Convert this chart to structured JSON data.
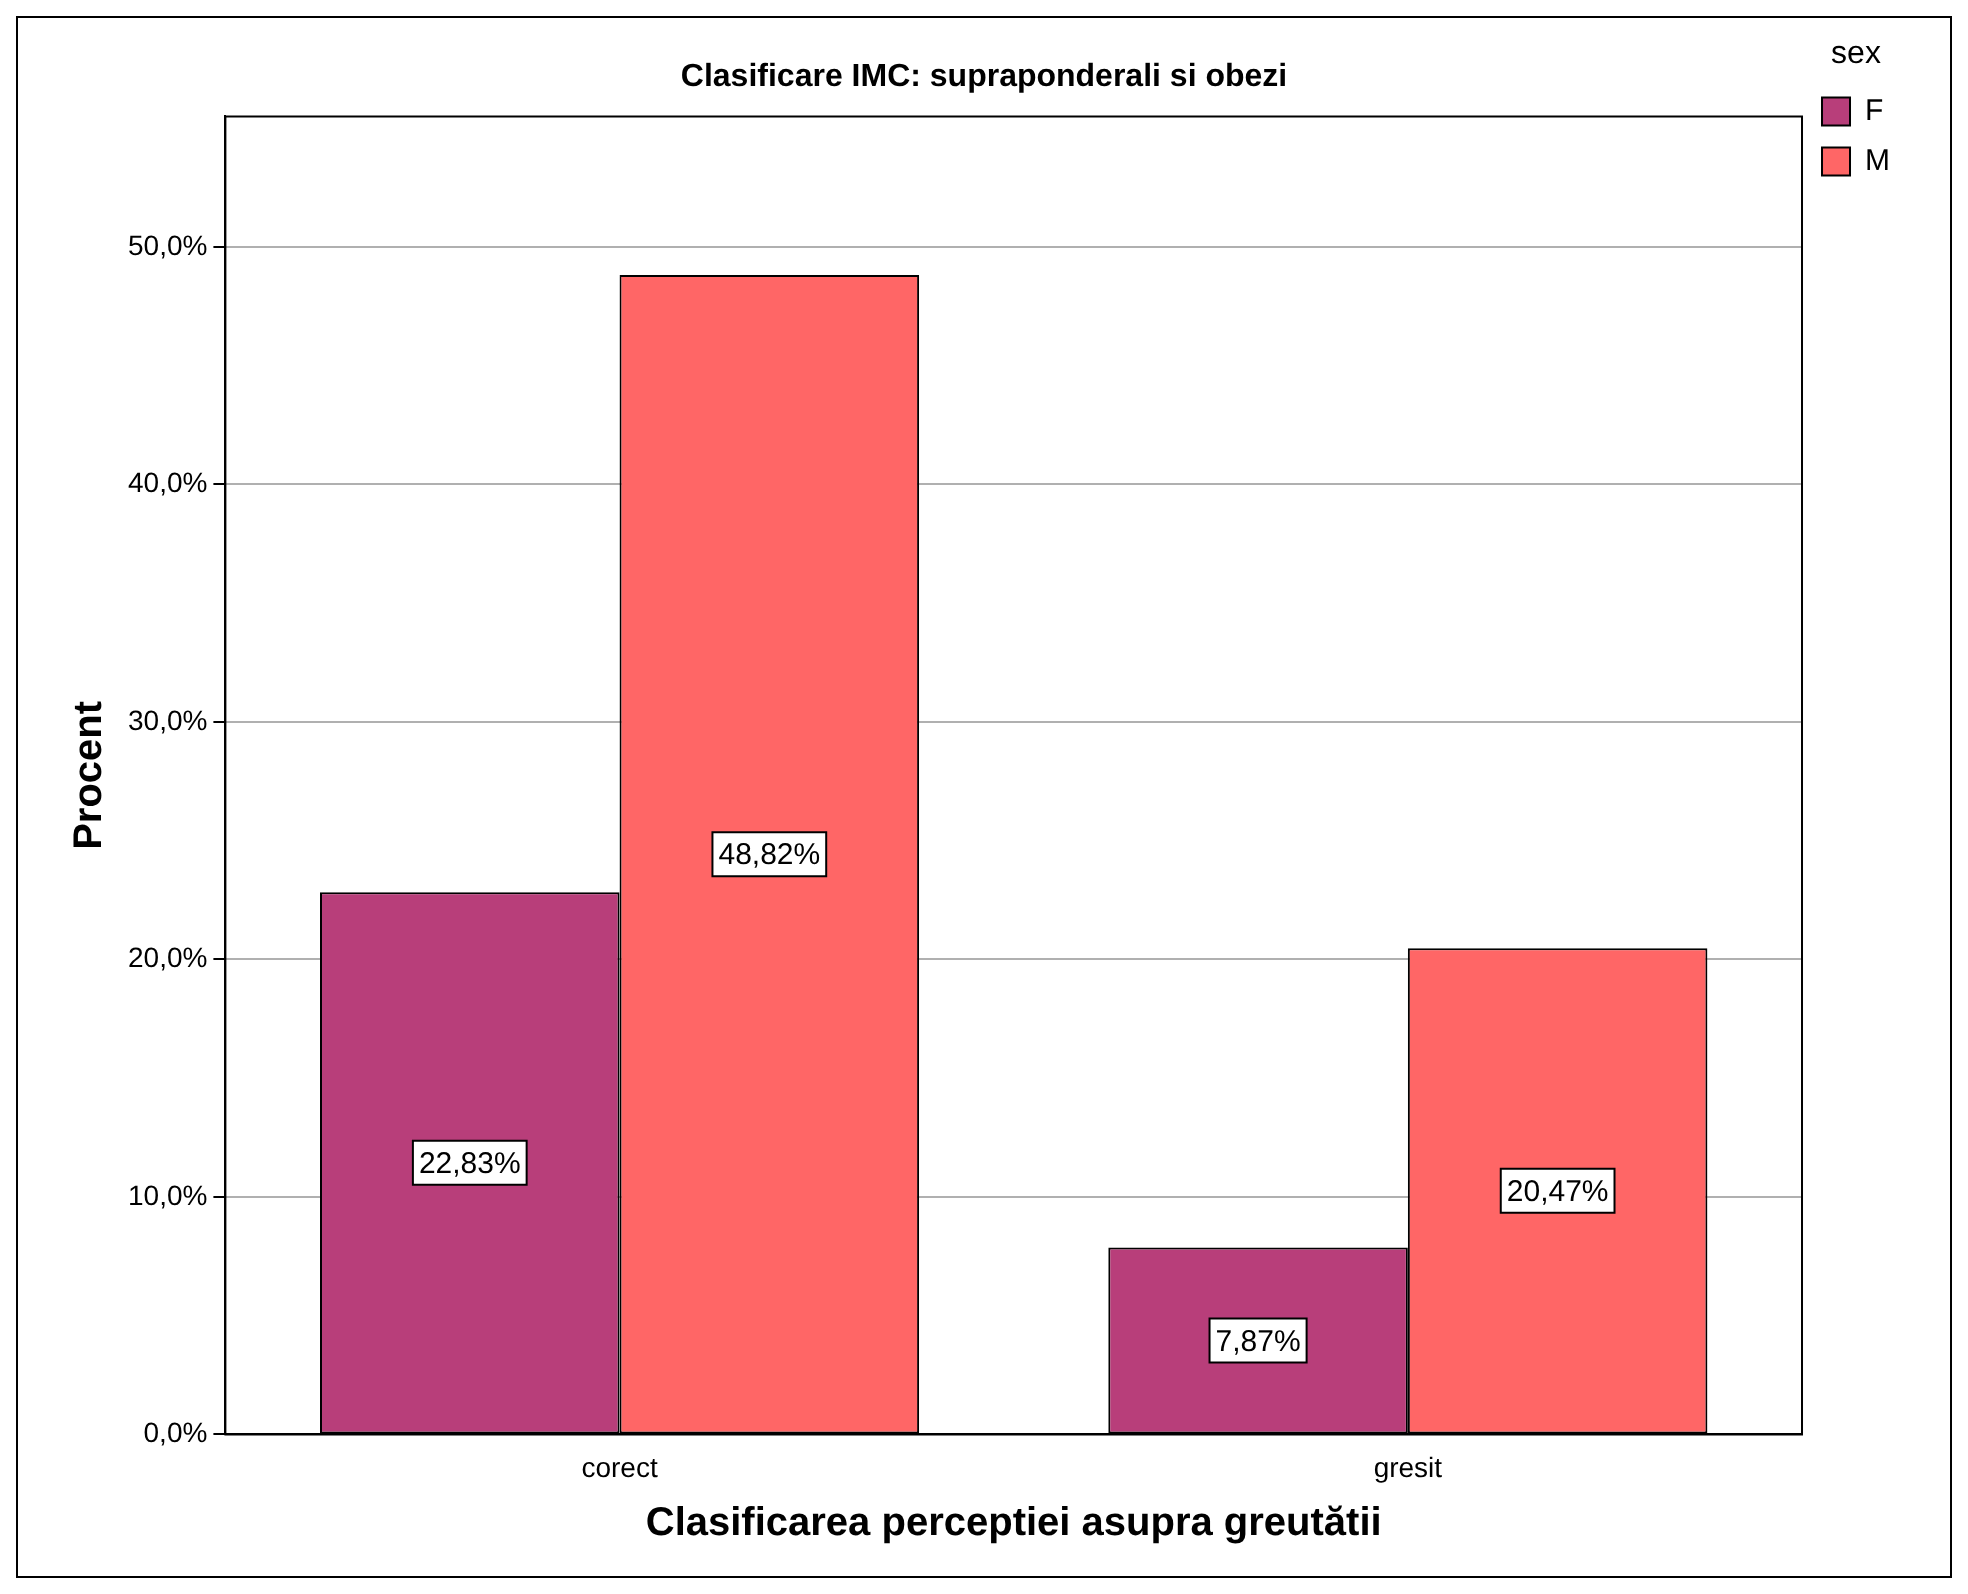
{
  "chart_data": {
    "type": "bar",
    "title": "Clasificare IMC: supraponderali si obezi",
    "xlabel": "Clasificarea perceptiei asupra greutătii",
    "ylabel": "Procent",
    "legend_title": "sex",
    "categories": [
      "corect",
      "gresit"
    ],
    "series": [
      {
        "name": "F",
        "color": "#b83e7a",
        "values": [
          22.83,
          7.87
        ],
        "value_labels": [
          "22,83%",
          "7,87%"
        ]
      },
      {
        "name": "M",
        "color": "#ff6666",
        "values": [
          48.82,
          20.47
        ],
        "value_labels": [
          "48,82%",
          "20,47%"
        ]
      }
    ],
    "ylim": [
      0,
      55.5
    ],
    "yticks": [
      {
        "value": 0,
        "label": "0,0%"
      },
      {
        "value": 10,
        "label": "10,0%"
      },
      {
        "value": 20,
        "label": "20,0%"
      },
      {
        "value": 30,
        "label": "30,0%"
      },
      {
        "value": 40,
        "label": "40,0%"
      },
      {
        "value": 50,
        "label": "50,0%"
      }
    ],
    "grid": "y",
    "legend": "top right"
  }
}
